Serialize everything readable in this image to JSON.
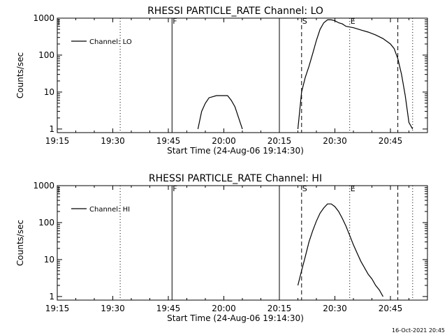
{
  "footer": {
    "timestamp": "16-Oct-2021 20:45"
  },
  "chart_data": [
    {
      "type": "line",
      "title": "RHESSI PARTICLE_RATE Channel: LO",
      "xlabel": "Start Time (24-Aug-06 19:14:30)",
      "ylabel": "Counts/sec",
      "yscale": "log",
      "ylim": [
        0.8,
        1000
      ],
      "xlim": [
        "19:15",
        "20:55"
      ],
      "x_ticks": [
        "19:15",
        "19:30",
        "19:45",
        "20:00",
        "20:15",
        "20:30",
        "20:45"
      ],
      "y_ticks": [
        "1",
        "10",
        "100",
        "1000"
      ],
      "legend": {
        "position": "top-left",
        "entries": [
          "Channel: LO"
        ]
      },
      "flags": [
        {
          "label": "F",
          "time": "19:46"
        },
        {
          "label": "S",
          "time": "20:21"
        },
        {
          "label": "E",
          "time": "20:34"
        }
      ],
      "markers": [
        {
          "time": "19:32",
          "style": "dotted"
        },
        {
          "time": "19:46",
          "style": "solid"
        },
        {
          "time": "20:15",
          "style": "solid"
        },
        {
          "time": "20:21",
          "style": "dashed"
        },
        {
          "time": "20:34",
          "style": "dotted"
        },
        {
          "time": "20:47",
          "style": "dashed"
        },
        {
          "time": "20:51",
          "style": "dotted"
        }
      ],
      "series": [
        {
          "name": "Channel: LO",
          "segments": [
            [
              [
                "19:53",
                1
              ],
              [
                "19:54",
                3
              ],
              [
                "19:55",
                5
              ],
              [
                "19:56",
                7
              ],
              [
                "19:58",
                8
              ],
              [
                "20:00",
                8
              ],
              [
                "20:01",
                8
              ],
              [
                "20:02",
                6
              ],
              [
                "20:03",
                4
              ],
              [
                "20:04",
                2
              ],
              [
                "20:05",
                1
              ]
            ],
            [
              [
                "20:20",
                1
              ],
              [
                "20:21",
                10
              ],
              [
                "20:22",
                25
              ],
              [
                "20:23",
                50
              ],
              [
                "20:24",
                110
              ],
              [
                "20:25",
                250
              ],
              [
                "20:26",
                500
              ],
              [
                "20:27",
                750
              ],
              [
                "20:28",
                900
              ],
              [
                "20:29",
                900
              ],
              [
                "20:30",
                850
              ],
              [
                "20:31",
                750
              ],
              [
                "20:32",
                700
              ],
              [
                "20:33",
                600
              ],
              [
                "20:35",
                550
              ],
              [
                "20:37",
                480
              ],
              [
                "20:39",
                420
              ],
              [
                "20:41",
                350
              ],
              [
                "20:43",
                280
              ],
              [
                "20:45",
                200
              ],
              [
                "20:46",
                150
              ],
              [
                "20:47",
                80
              ],
              [
                "20:48",
                30
              ],
              [
                "20:49",
                8
              ],
              [
                "20:50",
                1.5
              ],
              [
                "20:51",
                1
              ]
            ]
          ]
        }
      ]
    },
    {
      "type": "line",
      "title": "RHESSI PARTICLE_RATE Channel: HI",
      "xlabel": "Start Time (24-Aug-06 19:14:30)",
      "ylabel": "Counts/sec",
      "yscale": "log",
      "ylim": [
        0.8,
        1000
      ],
      "xlim": [
        "19:15",
        "20:55"
      ],
      "x_ticks": [
        "19:15",
        "19:30",
        "19:45",
        "20:00",
        "20:15",
        "20:30",
        "20:45"
      ],
      "y_ticks": [
        "1",
        "10",
        "100",
        "1000"
      ],
      "legend": {
        "position": "top-left",
        "entries": [
          "Channel: HI"
        ]
      },
      "flags": [
        {
          "label": "F",
          "time": "19:46"
        },
        {
          "label": "S",
          "time": "20:21"
        },
        {
          "label": "E",
          "time": "20:34"
        }
      ],
      "markers": [
        {
          "time": "19:32",
          "style": "dotted"
        },
        {
          "time": "19:46",
          "style": "solid"
        },
        {
          "time": "20:15",
          "style": "solid"
        },
        {
          "time": "20:21",
          "style": "dashed"
        },
        {
          "time": "20:34",
          "style": "dotted"
        },
        {
          "time": "20:47",
          "style": "dashed"
        },
        {
          "time": "20:51",
          "style": "dotted"
        }
      ],
      "series": [
        {
          "name": "Channel: HI",
          "segments": [
            [
              [
                "20:20",
                2
              ],
              [
                "20:21",
                5
              ],
              [
                "20:22",
                12
              ],
              [
                "20:23",
                30
              ],
              [
                "20:24",
                60
              ],
              [
                "20:25",
                110
              ],
              [
                "20:26",
                180
              ],
              [
                "20:27",
                250
              ],
              [
                "20:28",
                320
              ],
              [
                "20:29",
                320
              ],
              [
                "20:30",
                270
              ],
              [
                "20:31",
                200
              ],
              [
                "20:32",
                130
              ],
              [
                "20:33",
                80
              ],
              [
                "20:34",
                45
              ],
              [
                "20:35",
                25
              ],
              [
                "20:36",
                15
              ],
              [
                "20:37",
                9
              ],
              [
                "20:38",
                6
              ],
              [
                "20:39",
                4
              ],
              [
                "20:40",
                3
              ],
              [
                "20:41",
                2
              ],
              [
                "20:42",
                1.5
              ],
              [
                "20:43",
                1
              ]
            ]
          ]
        }
      ]
    }
  ]
}
